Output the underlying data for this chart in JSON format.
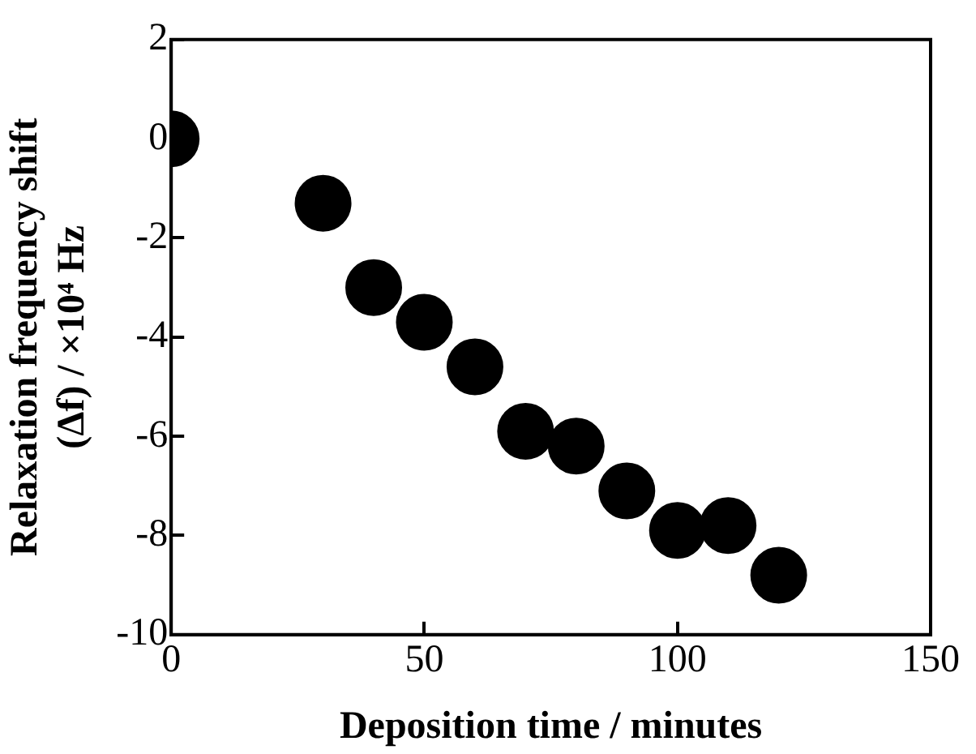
{
  "chart_data": {
    "type": "scatter",
    "xlabel": "Deposition time / minutes",
    "ylabel": "Relaxation frequency shift (Δf) / ×10⁴ Hz",
    "x": [
      0,
      30,
      40,
      50,
      60,
      70,
      80,
      90,
      100,
      110,
      120
    ],
    "series": [
      {
        "color": "#000000",
        "values": [
          0,
          -1.3,
          -3.0,
          -3.7,
          -4.6,
          -5.9,
          -6.2,
          -7.1,
          -7.9,
          -7.8,
          -8.8
        ]
      }
    ],
    "xlim": [
      0,
      150
    ],
    "xticks": [
      0,
      50,
      100,
      150
    ],
    "ylim": [
      -10,
      2
    ],
    "yticks": [
      -10,
      -8,
      -6,
      -4,
      -2,
      0,
      2
    ],
    "grid": false,
    "legend": false,
    "marker": "circle"
  }
}
